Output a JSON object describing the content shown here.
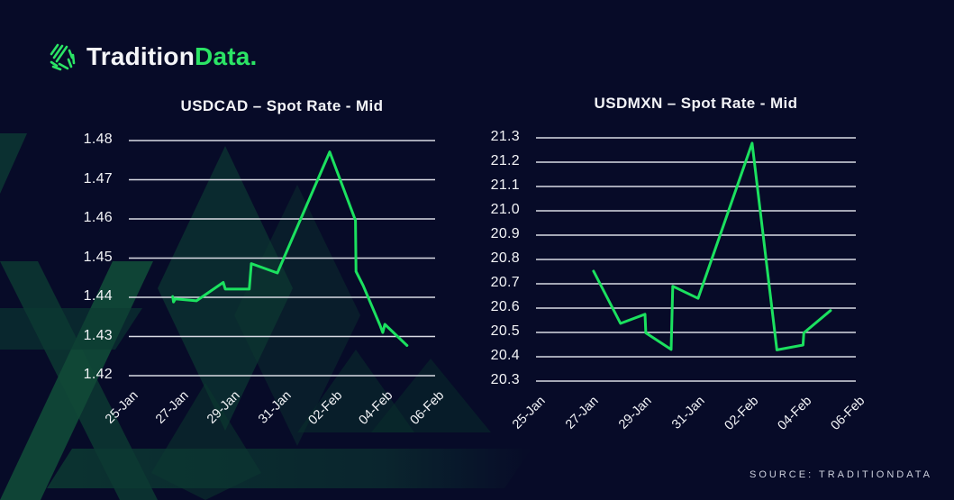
{
  "page": {
    "background_color": "#070b28",
    "source_label": "SOURCE: TRADITIONDATA"
  },
  "logo": {
    "brand_first": "Tradition",
    "brand_second": "Data.",
    "accent_color": "#2be465",
    "icon": "traditiondata-hatched-mark-icon"
  },
  "colors": {
    "line_green": "#1be15f",
    "grid_line": "#d9dbe4",
    "text": "#f3f4f7",
    "watermark_green": "#0d4034"
  },
  "chart_data": [
    {
      "type": "line",
      "title": "USDCAD – Spot Rate - Mid",
      "legend": "none",
      "grid": "horizontal",
      "line_color": "#1be15f",
      "xlim": [
        0,
        12
      ],
      "ylim": [
        1.42,
        1.48
      ],
      "x_tick_labels": [
        "25-Jan",
        "27-Jan",
        "29-Jan",
        "31-Jan",
        "02-Feb",
        "04-Feb",
        "06-Feb"
      ],
      "x_tick_positions": [
        0,
        2,
        4,
        6,
        8,
        10,
        12
      ],
      "y_tick_labels": [
        "1.48",
        "1.47",
        "1.46",
        "1.45",
        "1.44",
        "1.43",
        "1.42"
      ],
      "y_tick_values": [
        1.48,
        1.47,
        1.46,
        1.45,
        1.44,
        1.43,
        1.42
      ],
      "series": [
        {
          "name": "USDCAD spot mid",
          "x_unit": "days since 25-Jan",
          "points": [
            [
              1.72,
              1.4402
            ],
            [
              1.75,
              1.4388
            ],
            [
              1.82,
              1.4396
            ],
            [
              2.65,
              1.4391
            ],
            [
              3.7,
              1.4438
            ],
            [
              3.78,
              1.4421
            ],
            [
              4.72,
              1.4421
            ],
            [
              4.8,
              1.4486
            ],
            [
              5.82,
              1.4462
            ],
            [
              7.87,
              1.4771
            ],
            [
              8.88,
              1.4596
            ],
            [
              8.9,
              1.4466
            ],
            [
              9.18,
              1.443
            ],
            [
              9.84,
              1.4329
            ],
            [
              9.95,
              1.431
            ],
            [
              10.03,
              1.4331
            ],
            [
              10.9,
              1.4277
            ]
          ]
        }
      ]
    },
    {
      "type": "line",
      "title": "USDMXN – Spot Rate - Mid",
      "legend": "none",
      "grid": "horizontal",
      "line_color": "#1be15f",
      "xlim": [
        0,
        12
      ],
      "ylim": [
        20.3,
        21.3
      ],
      "x_tick_labels": [
        "25-Jan",
        "27-Jan",
        "29-Jan",
        "31-Jan",
        "02-Feb",
        "04-Feb",
        "06-Feb"
      ],
      "x_tick_positions": [
        0,
        2,
        4,
        6,
        8,
        10,
        12
      ],
      "y_tick_labels": [
        "21.3",
        "21.2",
        "21.1",
        "21.0",
        "20.9",
        "20.8",
        "20.7",
        "20.6",
        "20.5",
        "20.4",
        "20.3"
      ],
      "y_tick_values": [
        21.3,
        21.2,
        21.1,
        21.0,
        20.9,
        20.8,
        20.7,
        20.6,
        20.5,
        20.4,
        20.3
      ],
      "series": [
        {
          "name": "USDMXN spot mid",
          "x_unit": "days since 25-Jan",
          "points": [
            [
              2.16,
              20.752
            ],
            [
              3.17,
              20.537
            ],
            [
              4.09,
              20.575
            ],
            [
              4.12,
              20.498
            ],
            [
              5.07,
              20.43
            ],
            [
              5.13,
              20.69
            ],
            [
              6.08,
              20.64
            ],
            [
              8.11,
              21.278
            ],
            [
              9.04,
              20.428
            ],
            [
              10.02,
              20.448
            ],
            [
              10.05,
              20.498
            ],
            [
              11.05,
              20.59
            ]
          ]
        }
      ]
    }
  ]
}
